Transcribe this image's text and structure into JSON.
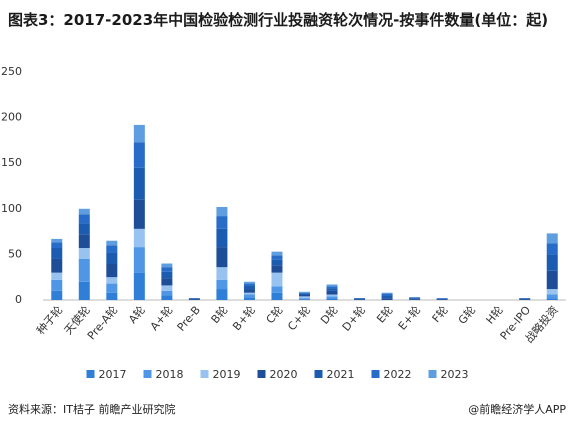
{
  "chart_data": {
    "type": "stacked-bar",
    "title": "图表3：2017-2023年中国检验检测行业投融资轮次情况-按事件数量(单位：起)",
    "categories": [
      "种子轮",
      "天使轮",
      "Pre-A轮",
      "A轮",
      "A+轮",
      "Pre-B",
      "B轮",
      "B+轮",
      "C轮",
      "C+轮",
      "D轮",
      "D+轮",
      "E轮",
      "E+轮",
      "F轮",
      "G轮",
      "H轮",
      "Pre-IPO",
      "战略投资"
    ],
    "series": [
      {
        "name": "2017",
        "color": "#2f7fd8",
        "values": [
          10,
          20,
          8,
          30,
          5,
          0,
          12,
          3,
          8,
          1,
          2,
          0,
          0,
          0,
          0,
          0,
          0,
          0,
          2
        ]
      },
      {
        "name": "2018",
        "color": "#4f97e6",
        "values": [
          12,
          25,
          10,
          28,
          5,
          0,
          10,
          3,
          7,
          1,
          2,
          0,
          0,
          0,
          0,
          0,
          0,
          0,
          4
        ]
      },
      {
        "name": "2019",
        "color": "#98c2f0",
        "values": [
          8,
          12,
          7,
          20,
          6,
          0,
          14,
          2,
          15,
          2,
          2,
          0,
          0,
          0,
          0,
          0,
          0,
          0,
          6
        ]
      },
      {
        "name": "2020",
        "color": "#1f4e99",
        "values": [
          15,
          15,
          15,
          32,
          8,
          1,
          22,
          4,
          8,
          2,
          4,
          1,
          2,
          1,
          1,
          0,
          0,
          1,
          20
        ]
      },
      {
        "name": "2021",
        "color": "#1c5cb0",
        "values": [
          12,
          12,
          12,
          35,
          7,
          1,
          20,
          4,
          6,
          1,
          3,
          1,
          3,
          1,
          0,
          0,
          0,
          1,
          18
        ]
      },
      {
        "name": "2022",
        "color": "#276cc8",
        "values": [
          6,
          10,
          8,
          28,
          5,
          0,
          14,
          2,
          5,
          1,
          2,
          0,
          2,
          1,
          1,
          0,
          0,
          0,
          12
        ]
      },
      {
        "name": "2023",
        "color": "#5e9ee0",
        "values": [
          4,
          6,
          5,
          19,
          4,
          0,
          10,
          2,
          4,
          1,
          2,
          0,
          1,
          0,
          0,
          0,
          0,
          0,
          11
        ]
      }
    ],
    "ylim": [
      0,
      250
    ],
    "yticks": [
      0,
      50,
      100,
      150,
      200,
      250
    ],
    "source": "资料来源：IT桔子 前瞻产业研究院",
    "credit": "@前瞻经济学人APP"
  }
}
